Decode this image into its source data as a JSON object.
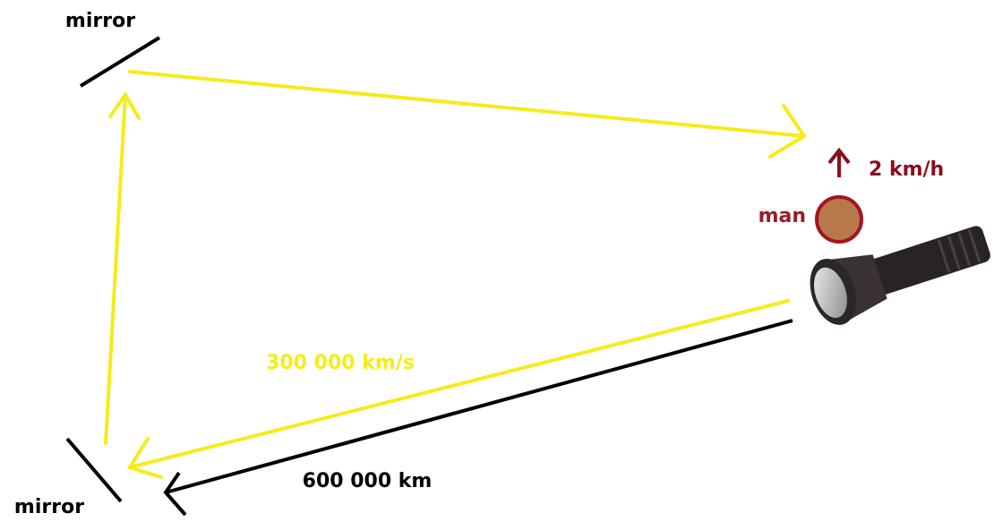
{
  "labels": {
    "mirror_top": "mirror",
    "mirror_bottom": "mirror",
    "man": "man",
    "man_speed": "2 km/h",
    "light_speed": "300 000 km/s",
    "distance": "600 000 km"
  }
}
